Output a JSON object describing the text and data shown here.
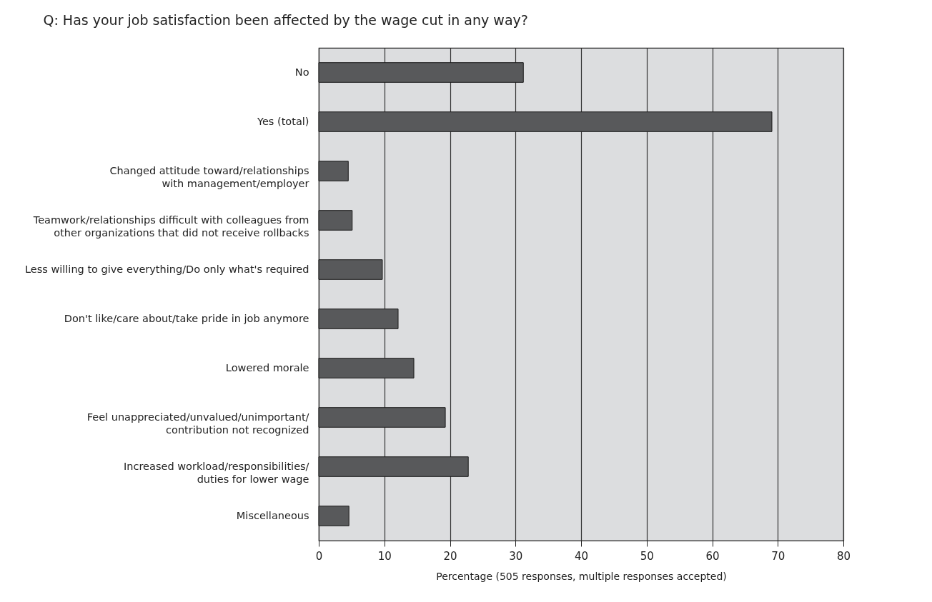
{
  "chart_data": {
    "type": "bar",
    "orientation": "horizontal",
    "title": "Q: Has your job satisfaction been affected by the wage cut in any way?",
    "xlabel": "Percentage (505 responses, multiple responses accepted)",
    "categories": [
      "No",
      "Yes (total)",
      "Changed attitude toward/relationships\nwith management/employer",
      "Teamwork/relationships difficult with colleagues from\nother organizations that did not receive rollbacks",
      "Less willing to give everything/Do only what's required",
      "Don't like/care about/take pride in job anymore",
      "Lowered morale",
      "Feel unappreciated/unvalued/unimportant/\ncontribution not recognized",
      "Increased workload/responsibilities/\nduties for lower wage",
      "Miscellaneous"
    ],
    "values": [
      31.2,
      69.1,
      4.5,
      5.1,
      9.7,
      12.1,
      14.5,
      19.3,
      22.8,
      4.6
    ],
    "color": "#58595b",
    "xlim": [
      0,
      80
    ],
    "xticks": [
      0,
      10,
      20,
      30,
      40,
      50,
      60,
      70,
      80
    ],
    "grid": "x"
  }
}
